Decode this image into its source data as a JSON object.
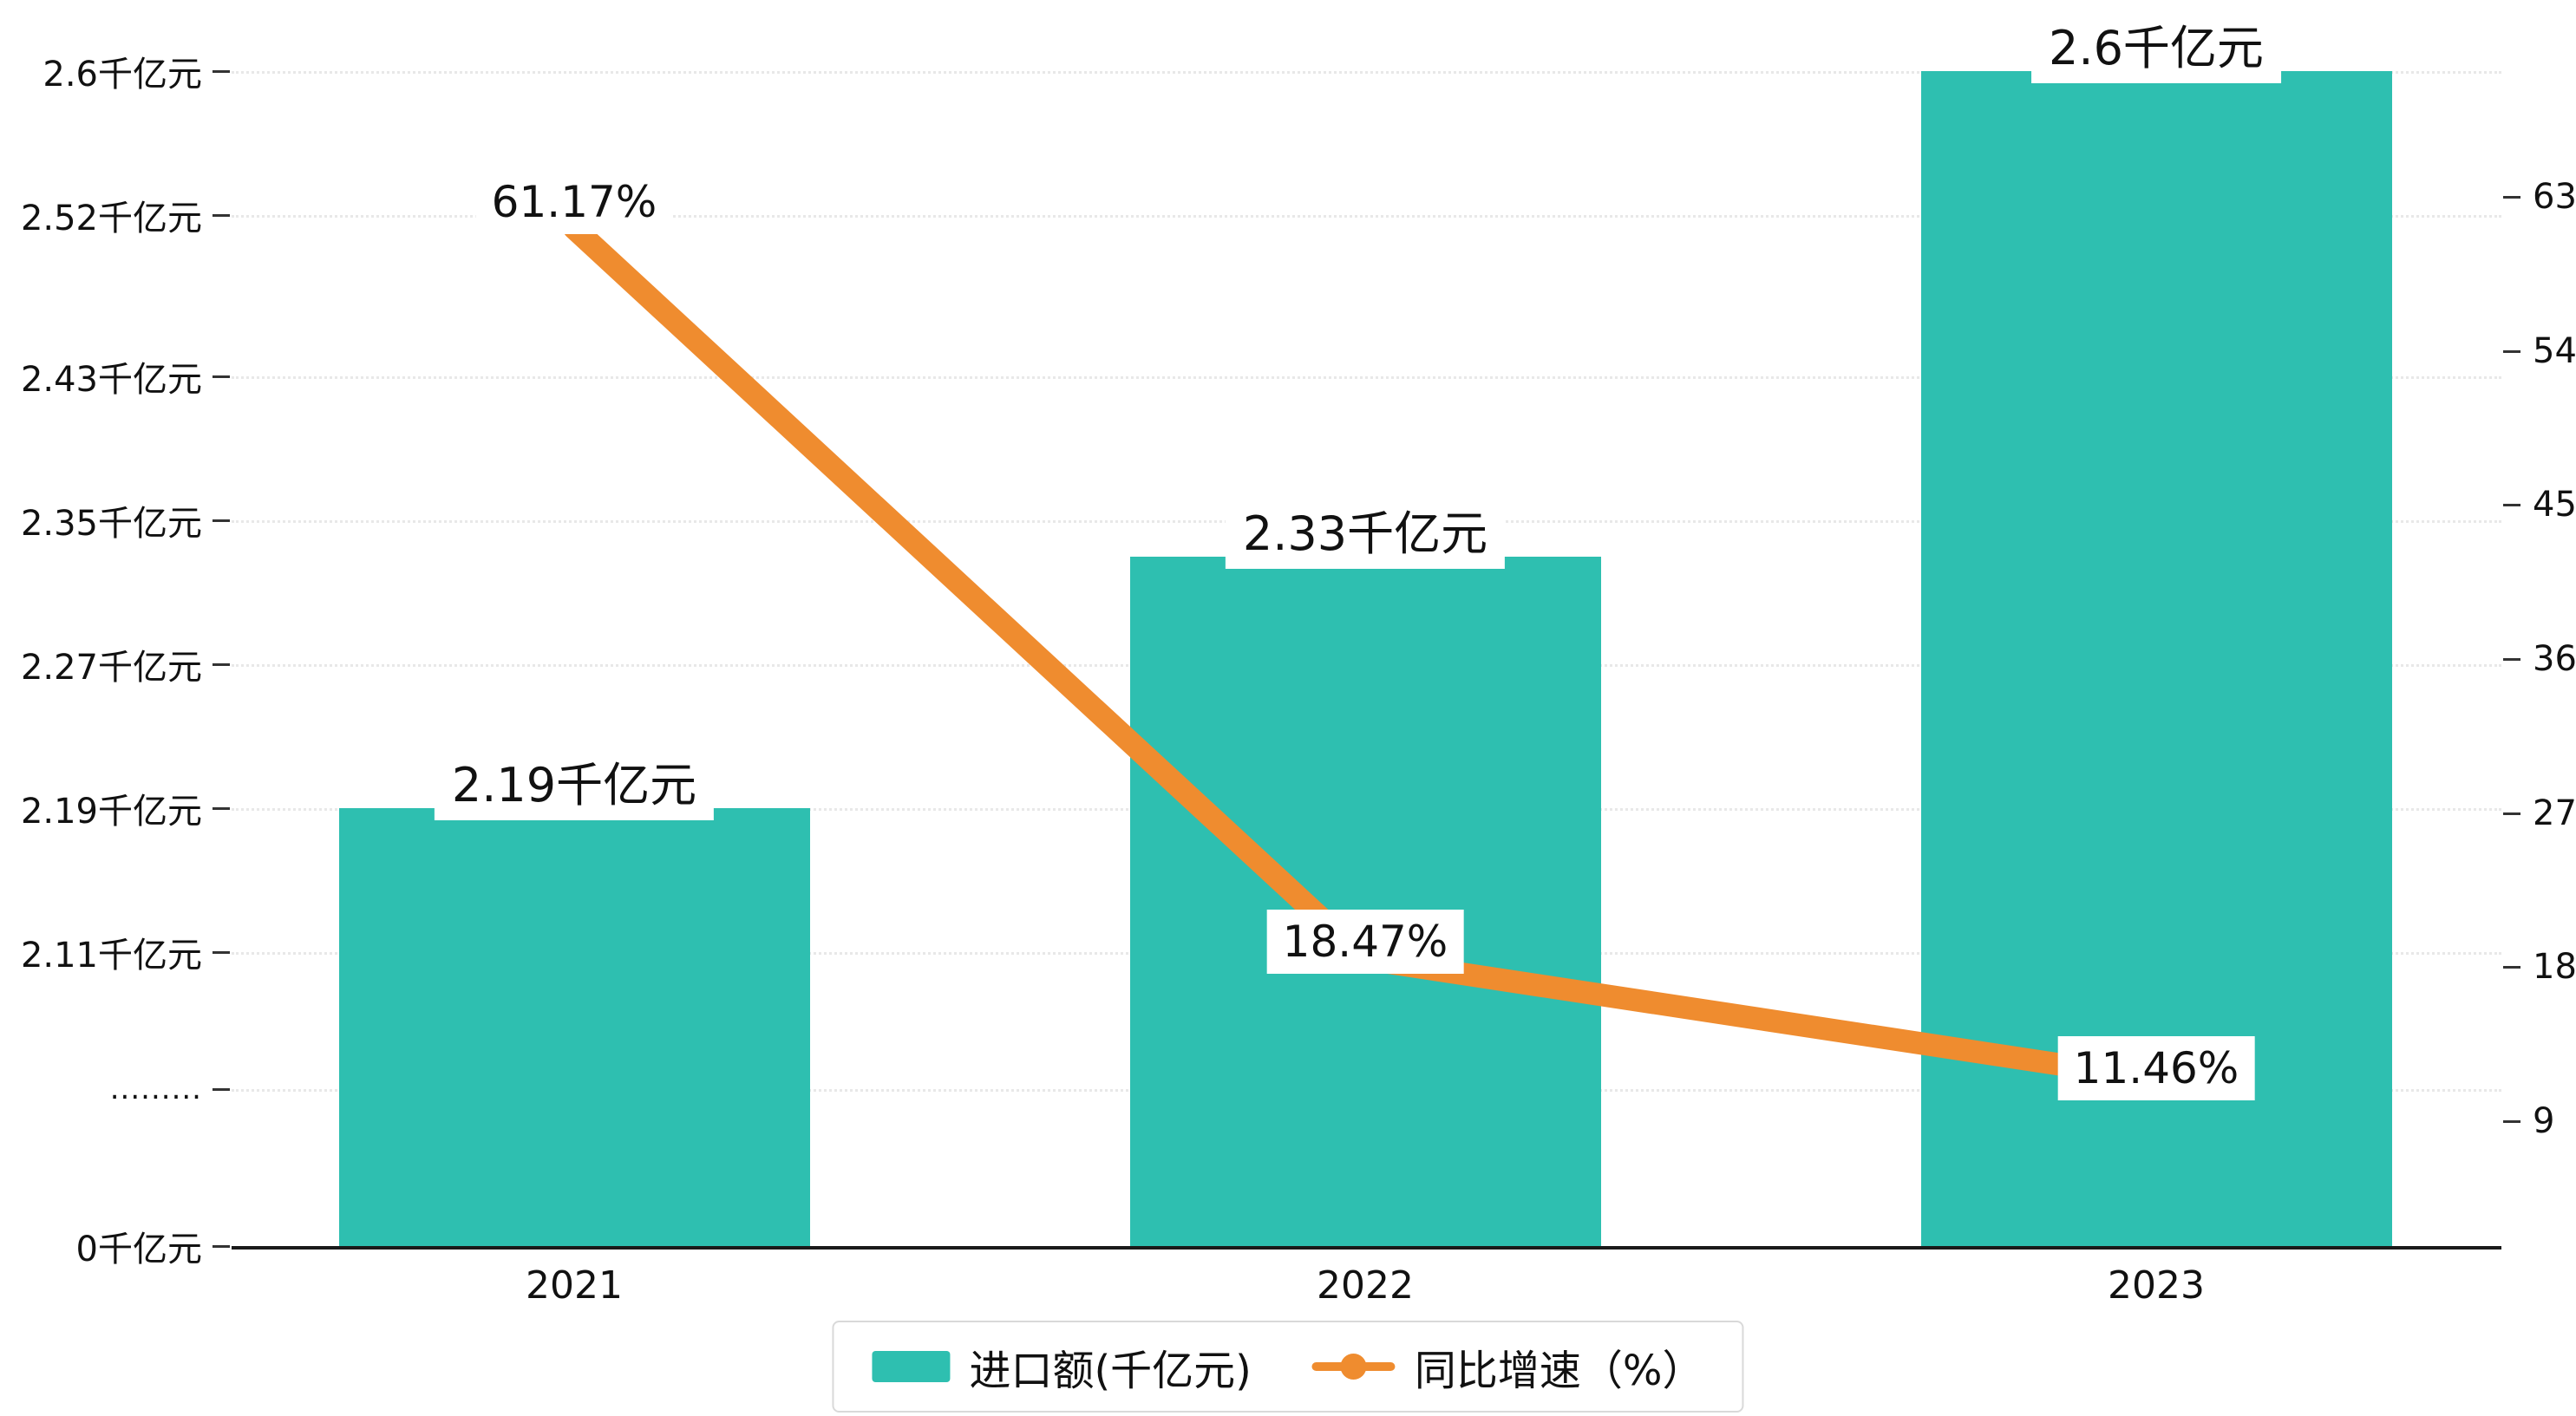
{
  "chart_data": {
    "type": "bar",
    "subtype": "bar-line-combo",
    "title": "",
    "categories": [
      "2021",
      "2022",
      "2023"
    ],
    "series": [
      {
        "name": "进口额(千亿元)",
        "kind": "bar",
        "axis": "left",
        "color": "#2ebfb0",
        "values": [
          2.19,
          2.33,
          2.6
        ],
        "data_labels": [
          "2.19千亿元",
          "2.33千亿元",
          "2.6千亿元"
        ]
      },
      {
        "name": "同比增速（%）",
        "kind": "line",
        "axis": "right",
        "color": "#ef8c2f",
        "values": [
          61.17,
          18.47,
          11.46
        ],
        "data_labels": [
          "61.17%",
          "18.47%",
          "11.46%"
        ]
      }
    ],
    "left_axis": {
      "unit": "千亿元",
      "range": [
        0,
        2.6
      ],
      "axis_break_between": [
        0,
        2.11
      ],
      "ticks": [
        {
          "label": "2.6千亿元",
          "value": 2.6
        },
        {
          "label": "2.52千亿元",
          "value": 2.52
        },
        {
          "label": "2.43千亿元",
          "value": 2.43
        },
        {
          "label": "2.35千亿元",
          "value": 2.35
        },
        {
          "label": "2.27千亿元",
          "value": 2.27
        },
        {
          "label": "2.19千亿元",
          "value": 2.19
        },
        {
          "label": "2.11千亿元",
          "value": 2.11
        },
        {
          "label": ".........",
          "value": null,
          "axis_break": true
        },
        {
          "label": "0千亿元",
          "value": 0
        }
      ]
    },
    "right_axis": {
      "unit": "%",
      "range": [
        9,
        63
      ],
      "ticks": [
        {
          "label": "63",
          "value": 63
        },
        {
          "label": "54",
          "value": 54
        },
        {
          "label": "45",
          "value": 45
        },
        {
          "label": "36",
          "value": 36
        },
        {
          "label": "27",
          "value": 27
        },
        {
          "label": "18",
          "value": 18
        },
        {
          "label": "9",
          "value": 9
        }
      ]
    },
    "legend": {
      "position": "bottom",
      "entries": [
        "进口额(千亿元)",
        "同比增速（%）"
      ]
    },
    "grid": true,
    "colors": {
      "bar": "#2ebfb0",
      "line": "#ef8c2f",
      "background": "#ffffff"
    }
  }
}
